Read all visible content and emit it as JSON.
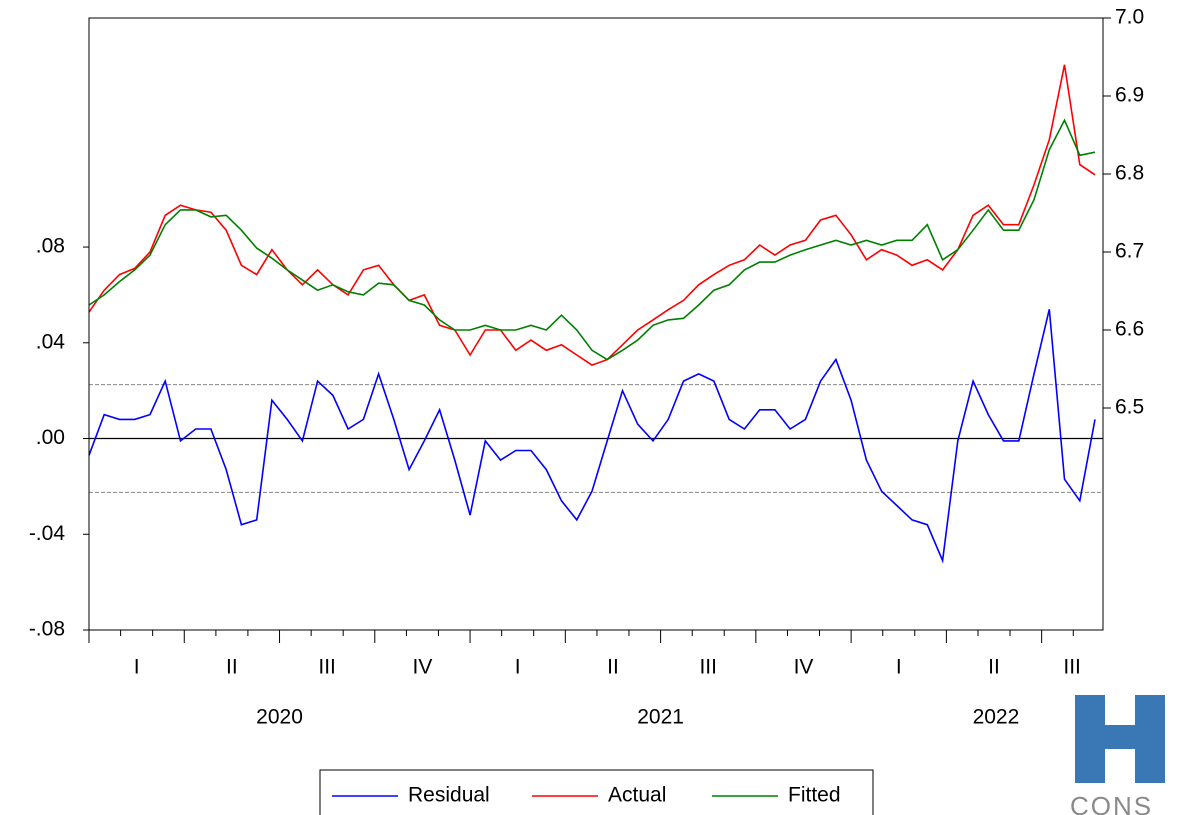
{
  "chart_data": {
    "type": "line",
    "x": [
      2020.0,
      2020.04,
      2020.08,
      2020.12,
      2020.16,
      2020.2,
      2020.24,
      2020.28,
      2020.32,
      2020.36,
      2020.4,
      2020.44,
      2020.48,
      2020.52,
      2020.56,
      2020.6,
      2020.64,
      2020.68,
      2020.72,
      2020.76,
      2020.8,
      2020.84,
      2020.88,
      2020.92,
      2020.96,
      2021.0,
      2021.04,
      2021.08,
      2021.12,
      2021.16,
      2021.2,
      2021.24,
      2021.28,
      2021.32,
      2021.36,
      2021.4,
      2021.44,
      2021.48,
      2021.52,
      2021.56,
      2021.6,
      2021.64,
      2021.68,
      2021.72,
      2021.76,
      2021.8,
      2021.84,
      2021.88,
      2021.92,
      2021.96,
      2022.0,
      2022.04,
      2022.08,
      2022.12,
      2022.16,
      2022.2,
      2022.24,
      2022.28,
      2022.32,
      2022.36,
      2022.4,
      2022.44,
      2022.48,
      2022.52,
      2022.56,
      2022.6,
      2022.64
    ],
    "series": [
      {
        "name": "Residual",
        "color": "#0000ff",
        "axis": "y",
        "values": [
          -0.007,
          0.01,
          0.008,
          0.008,
          0.01,
          0.024,
          -0.001,
          0.004,
          0.004,
          -0.013,
          -0.036,
          -0.034,
          0.016,
          0.008,
          -0.001,
          0.024,
          0.018,
          0.004,
          0.008,
          0.027,
          0.008,
          -0.013,
          -0.001,
          0.012,
          -0.009,
          -0.032,
          -0.001,
          -0.009,
          -0.005,
          -0.005,
          -0.013,
          -0.026,
          -0.034,
          -0.022,
          -0.001,
          0.02,
          0.006,
          -0.001,
          0.008,
          0.024,
          0.027,
          0.024,
          0.008,
          0.004,
          0.012,
          0.012,
          0.004,
          0.008,
          0.024,
          0.033,
          0.016,
          -0.009,
          -0.022,
          -0.028,
          -0.034,
          -0.036,
          -0.051,
          -0.001,
          0.024,
          0.01,
          -0.001,
          -0.001,
          0.027,
          0.054,
          -0.017,
          -0.026,
          0.008
        ]
      },
      {
        "name": "Actual",
        "color": "#ff0000",
        "axis": "y2",
        "values": [
          6.623,
          6.651,
          6.671,
          6.679,
          6.7,
          6.747,
          6.76,
          6.754,
          6.751,
          6.728,
          6.683,
          6.671,
          6.703,
          6.677,
          6.658,
          6.677,
          6.658,
          6.645,
          6.677,
          6.683,
          6.658,
          6.638,
          6.645,
          6.606,
          6.6,
          6.568,
          6.6,
          6.6,
          6.574,
          6.587,
          6.574,
          6.581,
          6.568,
          6.555,
          6.562,
          6.581,
          6.6,
          6.613,
          6.626,
          6.638,
          6.658,
          6.671,
          6.683,
          6.69,
          6.709,
          6.696,
          6.709,
          6.715,
          6.741,
          6.747,
          6.722,
          6.69,
          6.703,
          6.696,
          6.683,
          6.69,
          6.677,
          6.703,
          6.747,
          6.76,
          6.735,
          6.735,
          6.786,
          6.844,
          6.94,
          6.812,
          6.799
        ]
      },
      {
        "name": "Fitted",
        "color": "#008000",
        "axis": "y2",
        "values": [
          6.632,
          6.645,
          6.662,
          6.677,
          6.696,
          6.735,
          6.754,
          6.754,
          6.745,
          6.747,
          6.728,
          6.705,
          6.692,
          6.677,
          6.664,
          6.651,
          6.658,
          6.649,
          6.645,
          6.66,
          6.658,
          6.638,
          6.632,
          6.613,
          6.6,
          6.6,
          6.606,
          6.6,
          6.6,
          6.606,
          6.6,
          6.619,
          6.6,
          6.574,
          6.562,
          6.574,
          6.587,
          6.606,
          6.613,
          6.615,
          6.632,
          6.651,
          6.658,
          6.677,
          6.687,
          6.687,
          6.696,
          6.703,
          6.709,
          6.715,
          6.709,
          6.715,
          6.709,
          6.715,
          6.715,
          6.735,
          6.69,
          6.703,
          6.728,
          6.754,
          6.728,
          6.728,
          6.767,
          6.831,
          6.869,
          6.824,
          6.828
        ]
      }
    ],
    "xlim": [
      2020.0,
      2022.661
    ],
    "xticks": [
      2020.0,
      2020.25,
      2020.5,
      2020.75,
      2021.0,
      2021.25,
      2021.5,
      2021.75,
      2022.0,
      2022.25,
      2022.5
    ],
    "minor_xticks": [
      2020.083,
      2020.167,
      2020.333,
      2020.417,
      2020.583,
      2020.667,
      2020.833,
      2020.917,
      2021.083,
      2021.167,
      2021.333,
      2021.417,
      2021.583,
      2021.667,
      2021.833,
      2021.917,
      2022.083,
      2022.167,
      2022.333,
      2022.417,
      2022.583
    ],
    "quarter_labels": [
      {
        "value": 2020.125,
        "label": "I"
      },
      {
        "value": 2020.375,
        "label": "II"
      },
      {
        "value": 2020.625,
        "label": "III"
      },
      {
        "value": 2020.875,
        "label": "IV"
      },
      {
        "value": 2021.125,
        "label": "I"
      },
      {
        "value": 2021.375,
        "label": "II"
      },
      {
        "value": 2021.625,
        "label": "III"
      },
      {
        "value": 2021.875,
        "label": "IV"
      },
      {
        "value": 2022.125,
        "label": "I"
      },
      {
        "value": 2022.375,
        "label": "II"
      },
      {
        "value": 2022.58,
        "label": "III"
      }
    ],
    "year_labels": [
      {
        "value": 2020.5,
        "label": "2020"
      },
      {
        "value": 2021.5,
        "label": "2021"
      },
      {
        "value": 2022.38,
        "label": "2022"
      }
    ],
    "ylim": [
      -0.08,
      0.1757
    ],
    "yticks": [
      {
        "value": -0.08,
        "label": "-.08"
      },
      {
        "value": -0.04,
        "label": "-.04"
      },
      {
        "value": 0,
        "label": ".00"
      },
      {
        "value": 0.04,
        "label": ".04"
      },
      {
        "value": 0.08,
        "label": ".08"
      }
    ],
    "y2lim": [
      6.2154,
      7.0
    ],
    "y2ticks": [
      6.5,
      6.6,
      6.7,
      6.8,
      6.9,
      {
        "value": 7.0,
        "label": "7.0"
      }
    ],
    "reference_lines": [
      0.0225,
      0,
      -0.0225
    ],
    "legend": "bottom",
    "watermark": "CONS"
  }
}
